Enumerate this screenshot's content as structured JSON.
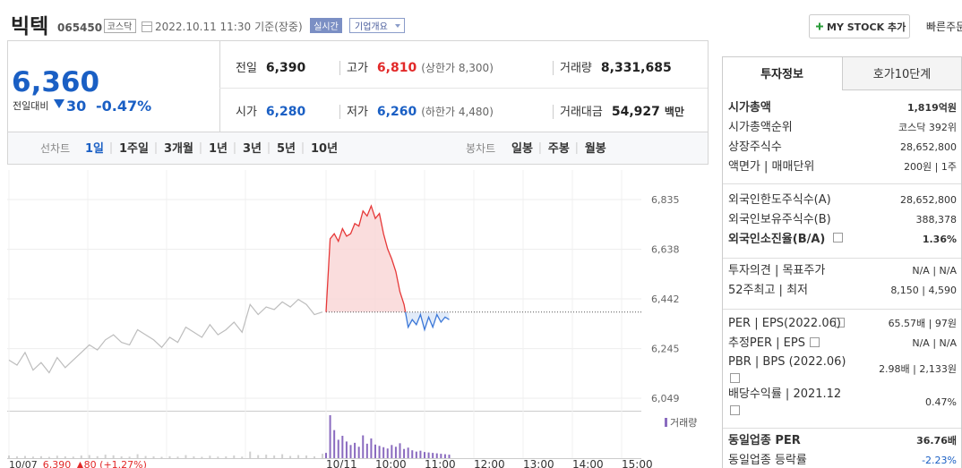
{
  "header": {
    "name": "빅텍",
    "code": "065450",
    "market": "코스닥",
    "datetime": "2022.10.11 11:30",
    "basis": "기준(장중)",
    "realtime": "실시간",
    "company": "기업개요",
    "mystock": "MY STOCK 추가",
    "quick": "빠른주문"
  },
  "quote": {
    "price": "6,360",
    "change_label": "전일대비",
    "change": "30",
    "change_pct": "-0.47%",
    "color": "#1a5fc4",
    "rows": [
      [
        {
          "label": "전일",
          "value": "6,390",
          "color": "#222"
        },
        {
          "label": "고가",
          "value": "6,810",
          "color": "#e22929",
          "sub": "(상한가 8,300)"
        },
        {
          "label": "거래량",
          "value": "8,331,685",
          "color": "#222"
        }
      ],
      [
        {
          "label": "시가",
          "value": "6,280",
          "color": "#1a5fc4"
        },
        {
          "label": "저가",
          "value": "6,260",
          "color": "#1a5fc4",
          "sub": "(하한가 4,480)"
        },
        {
          "label": "거래대금",
          "value": "54,927",
          "color": "#222",
          "unit": "백만"
        }
      ]
    ]
  },
  "periods": {
    "line_label": "선차트",
    "line": [
      "1일",
      "1주일",
      "3개월",
      "1년",
      "3년",
      "5년",
      "10년"
    ],
    "line_active": 0,
    "candle_label": "봉차트",
    "candle": [
      "일봉",
      "주봉",
      "월봉"
    ]
  },
  "chart_data": {
    "type": "line",
    "ylim": [
      6003,
      6952
    ],
    "yticks": [
      {
        "value": 6835,
        "label": "6,835"
      },
      {
        "value": 6638,
        "label": "6,638"
      },
      {
        "value": 6442,
        "label": "6,442"
      },
      {
        "value": 6245,
        "label": "6,245"
      },
      {
        "value": 6049,
        "label": "6,049"
      }
    ],
    "x_labels": [
      "10/11",
      "10:00",
      "11:00",
      "12:00",
      "13:00",
      "14:00",
      "15:00"
    ],
    "baseline": 6390,
    "previous": {
      "color": "#bdbdbd",
      "volume_color": "#d0d0d0",
      "values": [
        6200,
        6180,
        6230,
        6160,
        6190,
        6150,
        6210,
        6170,
        6200,
        6230,
        6260,
        6240,
        6280,
        6300,
        6270,
        6260,
        6320,
        6300,
        6280,
        6250,
        6290,
        6270,
        6330,
        6310,
        6290,
        6340,
        6300,
        6320,
        6350,
        6310,
        6420,
        6380,
        6410,
        6400,
        6430,
        6410,
        6440,
        6420,
        6380,
        6390
      ],
      "volume": [
        60000,
        40000,
        50000,
        35000,
        45000,
        30000,
        55000,
        40000,
        35000,
        60000,
        70000,
        45000,
        80000,
        65000,
        40000,
        35000,
        90000,
        50000,
        40000,
        30000,
        45000,
        35000,
        70000,
        40000,
        30000,
        55000,
        35000,
        40000,
        60000,
        35000,
        150000,
        70000,
        80000,
        60000,
        90000,
        50000,
        70000,
        60000,
        40000,
        100000
      ]
    },
    "today": {
      "up_color": "#e63838",
      "down_color": "#3c78d8",
      "up_fill": "#f9d4d4",
      "down_fill": "#d9e6f7",
      "volume_color": "#8a6bbf",
      "values": [
        6390,
        6680,
        6700,
        6670,
        6720,
        6690,
        6700,
        6740,
        6730,
        6790,
        6770,
        6810,
        6760,
        6780,
        6700,
        6640,
        6600,
        6550,
        6470,
        6420,
        6330,
        6360,
        6340,
        6380,
        6320,
        6370,
        6330,
        6380,
        6350,
        6370,
        6360
      ],
      "volume": [
        120000,
        980000,
        640000,
        420000,
        510000,
        380000,
        300000,
        350000,
        260000,
        520000,
        330000,
        450000,
        310000,
        280000,
        250000,
        220000,
        300000,
        260000,
        340000,
        210000,
        240000,
        180000,
        150000,
        170000,
        140000,
        130000,
        120000,
        110000,
        100000,
        90000,
        80000
      ]
    },
    "volume_label": "거래량",
    "footer": {
      "date": "10/07",
      "price": "6,390",
      "change": "▲80 (+1.27%)"
    }
  },
  "info": {
    "tabs": [
      "투자정보",
      "호가10단계"
    ],
    "rows": [
      {
        "label": "시가총액",
        "value": "1,819억원",
        "strong": true
      },
      {
        "label": "시가총액순위",
        "value": "코스닥 392위"
      },
      {
        "label": "상장주식수",
        "value": "28,652,800"
      },
      {
        "label": "액면가 | 매매단위",
        "value": "200원 | 1주"
      },
      {
        "label": "외국인한도주식수(A)",
        "value": "28,652,800"
      },
      {
        "label": "외국인보유주식수(B)",
        "value": "388,378"
      },
      {
        "label": "외국인소진율(B/A)",
        "value": "1.36%",
        "strong": true
      },
      {
        "label": "투자의견 | 목표주가",
        "value": "N/A | N/A"
      },
      {
        "label": "52주최고 | 최저",
        "value": "8,150 | 4,590"
      },
      {
        "label": "PER | EPS(2022.06)",
        "value": "65.57배 | 97원"
      },
      {
        "label": "추정PER | EPS",
        "value": "N/A | N/A"
      },
      {
        "label": "PBR | BPS (2022.06)",
        "value": "2.98배 | 2,133원"
      },
      {
        "label": "배당수익률 | 2021.12",
        "value": "0.47%"
      },
      {
        "label": "동일업종 PER",
        "value": "36.76배",
        "strong": true
      },
      {
        "label": "동일업종 등락률",
        "value": "-2.23%",
        "color": "#1a5fc4"
      }
    ]
  }
}
